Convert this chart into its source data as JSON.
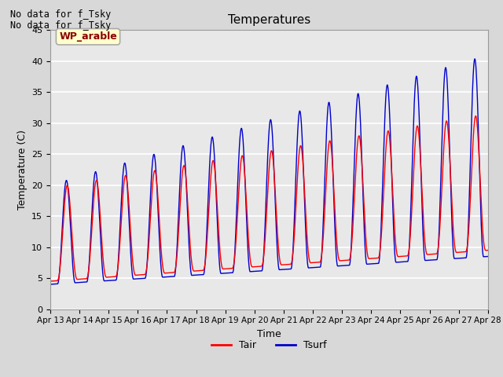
{
  "title": "Temperatures",
  "xlabel": "Time",
  "ylabel": "Temperature (C)",
  "no_data_text1": "No data for f_Tsky",
  "no_data_text2": "No data for f_Tsky",
  "wp_label": "WP_arable",
  "legend_tair": "Tair",
  "legend_tsurf": "Tsurf",
  "tair_color": "#ff0000",
  "tsurf_color": "#0000cc",
  "background_color": "#d8d8d8",
  "plot_bg_color": "#e8e8e8",
  "ylim": [
    0,
    45
  ],
  "yticks": [
    0,
    5,
    10,
    15,
    20,
    25,
    30,
    35,
    40,
    45
  ],
  "xlim": [
    13.0,
    28.0
  ],
  "x_tick_days": [
    13,
    14,
    15,
    16,
    17,
    18,
    19,
    20,
    21,
    22,
    23,
    24,
    25,
    26,
    27,
    28
  ],
  "x_tick_labels": [
    "Apr 13",
    "Apr 14",
    "Apr 15",
    "Apr 16",
    "Apr 17",
    "Apr 18",
    "Apr 19",
    "Apr 20",
    "Apr 21",
    "Apr 22",
    "Apr 23",
    "Apr 24",
    "Apr 25",
    "Apr 26",
    "Apr 27",
    "Apr 28"
  ]
}
